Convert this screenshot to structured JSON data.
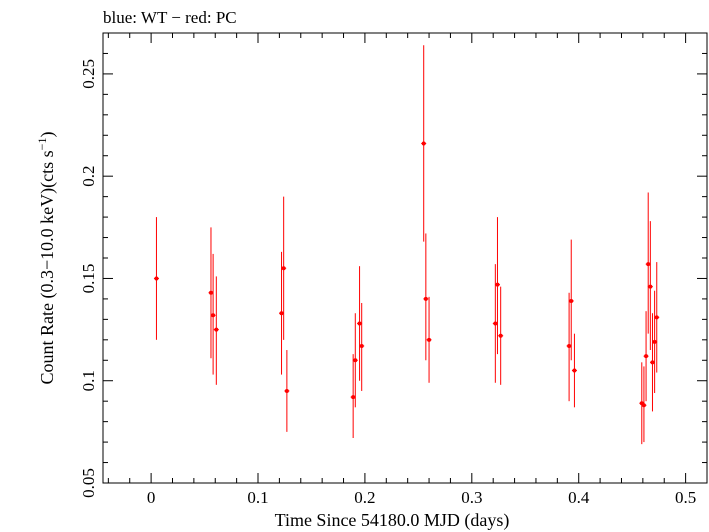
{
  "header": {
    "legend_text": "blue: WT − red: PC"
  },
  "chart_data": {
    "type": "scatter",
    "title": "blue: WT − red: PC",
    "xlabel": "Time Since 54180.0 MJD (days)",
    "ylabel": "Count Rate (0.3−10.0 keV)(cts s",
    "ylabel_sup": "−1",
    "ylabel_end": ")",
    "xlim": [
      -0.045,
      0.52
    ],
    "ylim": [
      0.05,
      0.27
    ],
    "xticks": [
      0,
      0.1,
      0.2,
      0.3,
      0.4,
      0.5
    ],
    "xtick_labels": [
      "0",
      "0.1",
      "0.2",
      "0.3",
      "0.4",
      "0.5"
    ],
    "yticks": [
      0.05,
      0.1,
      0.15,
      0.2,
      0.25
    ],
    "ytick_labels": [
      "0.05",
      "0.1",
      "0.15",
      "0.2",
      "0.25"
    ],
    "grid": false,
    "series": [
      {
        "name": "PC",
        "color": "#ff0000",
        "points": [
          {
            "x": 0.005,
            "y": 0.15,
            "ylo": 0.12,
            "yhi": 0.18
          },
          {
            "x": 0.056,
            "y": 0.143,
            "ylo": 0.111,
            "yhi": 0.175
          },
          {
            "x": 0.058,
            "y": 0.132,
            "ylo": 0.103,
            "yhi": 0.162
          },
          {
            "x": 0.061,
            "y": 0.125,
            "ylo": 0.098,
            "yhi": 0.151
          },
          {
            "x": 0.122,
            "y": 0.133,
            "ylo": 0.103,
            "yhi": 0.163
          },
          {
            "x": 0.124,
            "y": 0.155,
            "ylo": 0.12,
            "yhi": 0.19
          },
          {
            "x": 0.127,
            "y": 0.095,
            "ylo": 0.075,
            "yhi": 0.115
          },
          {
            "x": 0.189,
            "y": 0.092,
            "ylo": 0.072,
            "yhi": 0.113
          },
          {
            "x": 0.191,
            "y": 0.11,
            "ylo": 0.087,
            "yhi": 0.133
          },
          {
            "x": 0.195,
            "y": 0.128,
            "ylo": 0.1,
            "yhi": 0.156
          },
          {
            "x": 0.197,
            "y": 0.117,
            "ylo": 0.095,
            "yhi": 0.138
          },
          {
            "x": 0.255,
            "y": 0.216,
            "ylo": 0.168,
            "yhi": 0.264
          },
          {
            "x": 0.257,
            "y": 0.14,
            "ylo": 0.11,
            "yhi": 0.172
          },
          {
            "x": 0.26,
            "y": 0.12,
            "ylo": 0.099,
            "yhi": 0.141
          },
          {
            "x": 0.322,
            "y": 0.128,
            "ylo": 0.099,
            "yhi": 0.157
          },
          {
            "x": 0.324,
            "y": 0.147,
            "ylo": 0.113,
            "yhi": 0.18
          },
          {
            "x": 0.327,
            "y": 0.122,
            "ylo": 0.098,
            "yhi": 0.146
          },
          {
            "x": 0.391,
            "y": 0.117,
            "ylo": 0.09,
            "yhi": 0.143
          },
          {
            "x": 0.393,
            "y": 0.139,
            "ylo": 0.11,
            "yhi": 0.169
          },
          {
            "x": 0.396,
            "y": 0.105,
            "ylo": 0.087,
            "yhi": 0.123
          },
          {
            "x": 0.459,
            "y": 0.089,
            "ylo": 0.069,
            "yhi": 0.109
          },
          {
            "x": 0.461,
            "y": 0.088,
            "ylo": 0.07,
            "yhi": 0.107
          },
          {
            "x": 0.463,
            "y": 0.112,
            "ylo": 0.09,
            "yhi": 0.134
          },
          {
            "x": 0.465,
            "y": 0.157,
            "ylo": 0.123,
            "yhi": 0.192
          },
          {
            "x": 0.467,
            "y": 0.146,
            "ylo": 0.115,
            "yhi": 0.178
          },
          {
            "x": 0.469,
            "y": 0.109,
            "ylo": 0.085,
            "yhi": 0.133
          },
          {
            "x": 0.471,
            "y": 0.119,
            "ylo": 0.094,
            "yhi": 0.144
          },
          {
            "x": 0.473,
            "y": 0.131,
            "ylo": 0.104,
            "yhi": 0.158
          }
        ]
      }
    ]
  }
}
